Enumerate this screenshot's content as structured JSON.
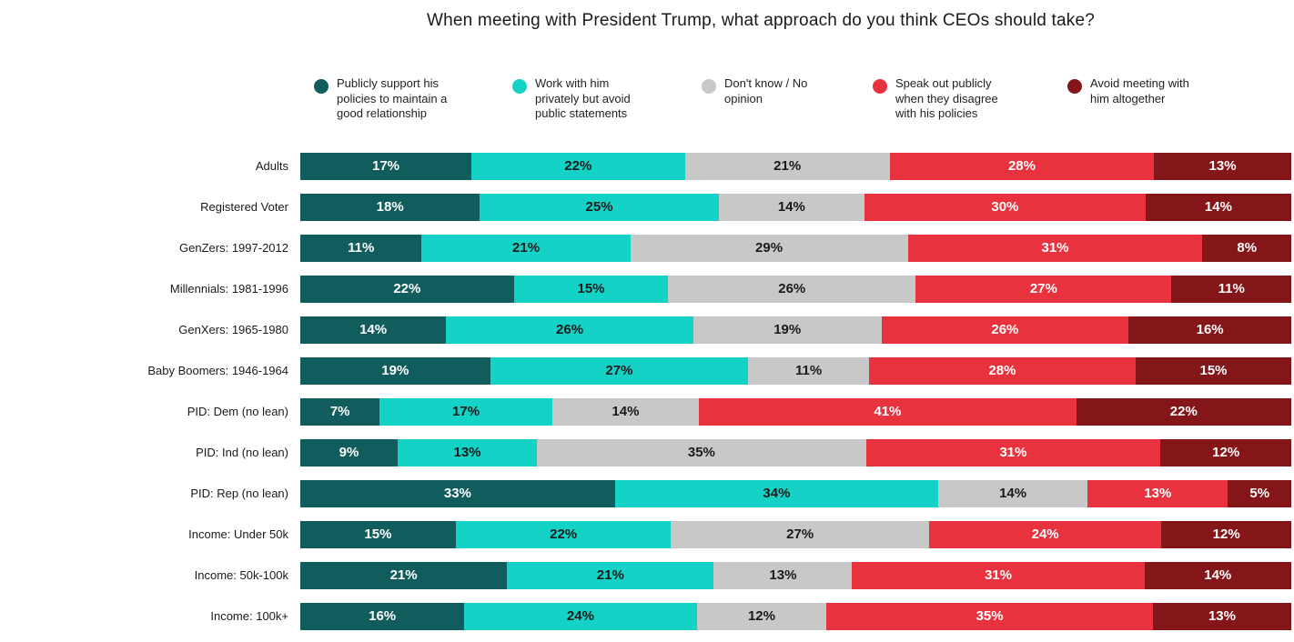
{
  "title": "When meeting with President Trump, what approach do you think CEOs should take?",
  "chart_data": {
    "type": "bar",
    "stacked": true,
    "orientation": "horizontal",
    "unit": "%",
    "legend_position": "top",
    "series": [
      {
        "name": "Publicly support his policies to maintain a good relationship",
        "color": "#115C5C",
        "label_color": "#ffffff"
      },
      {
        "name": "Work with him privately but avoid public statements",
        "color": "#14D2C5",
        "label_color": "#1a1a1a"
      },
      {
        "name": "Don't know / No opinion",
        "color": "#C8C8C8",
        "label_color": "#1a1a1a"
      },
      {
        "name": "Speak out publicly when they disagree with his policies",
        "color": "#E8333F",
        "label_color": "#ffffff"
      },
      {
        "name": "Avoid meeting with him altogether",
        "color": "#841519",
        "label_color": "#ffffff"
      }
    ],
    "categories": [
      "Adults",
      "Registered Voter",
      "GenZers: 1997-2012",
      "Millennials: 1981-1996",
      "GenXers: 1965-1980",
      "Baby Boomers: 1946-1964",
      "PID: Dem (no lean)",
      "PID: Ind (no lean)",
      "PID: Rep (no lean)",
      "Income: Under 50k",
      "Income: 50k-100k",
      "Income: 100k+"
    ],
    "rows": [
      {
        "label": "Adults",
        "values": [
          17,
          22,
          21,
          28,
          13
        ]
      },
      {
        "label": "Registered Voter",
        "values": [
          18,
          25,
          14,
          30,
          14
        ]
      },
      {
        "label": "GenZers: 1997-2012",
        "values": [
          11,
          21,
          29,
          31,
          8
        ]
      },
      {
        "label": "Millennials: 1981-1996",
        "values": [
          22,
          15,
          26,
          27,
          11
        ]
      },
      {
        "label": "GenXers: 1965-1980",
        "values": [
          14,
          26,
          19,
          26,
          16
        ]
      },
      {
        "label": "Baby Boomers: 1946-1964",
        "values": [
          19,
          27,
          11,
          28,
          15
        ]
      },
      {
        "label": "PID: Dem (no lean)",
        "values": [
          7,
          17,
          14,
          41,
          22
        ]
      },
      {
        "label": "PID: Ind (no lean)",
        "values": [
          9,
          13,
          35,
          31,
          12
        ]
      },
      {
        "label": "PID: Rep (no lean)",
        "values": [
          33,
          34,
          14,
          13,
          5
        ]
      },
      {
        "label": "Income: Under 50k",
        "values": [
          15,
          22,
          27,
          24,
          12
        ]
      },
      {
        "label": "Income: 50k-100k",
        "values": [
          21,
          21,
          13,
          31,
          14
        ]
      },
      {
        "label": "Income: 100k+",
        "values": [
          16,
          24,
          12,
          35,
          13
        ]
      }
    ]
  }
}
